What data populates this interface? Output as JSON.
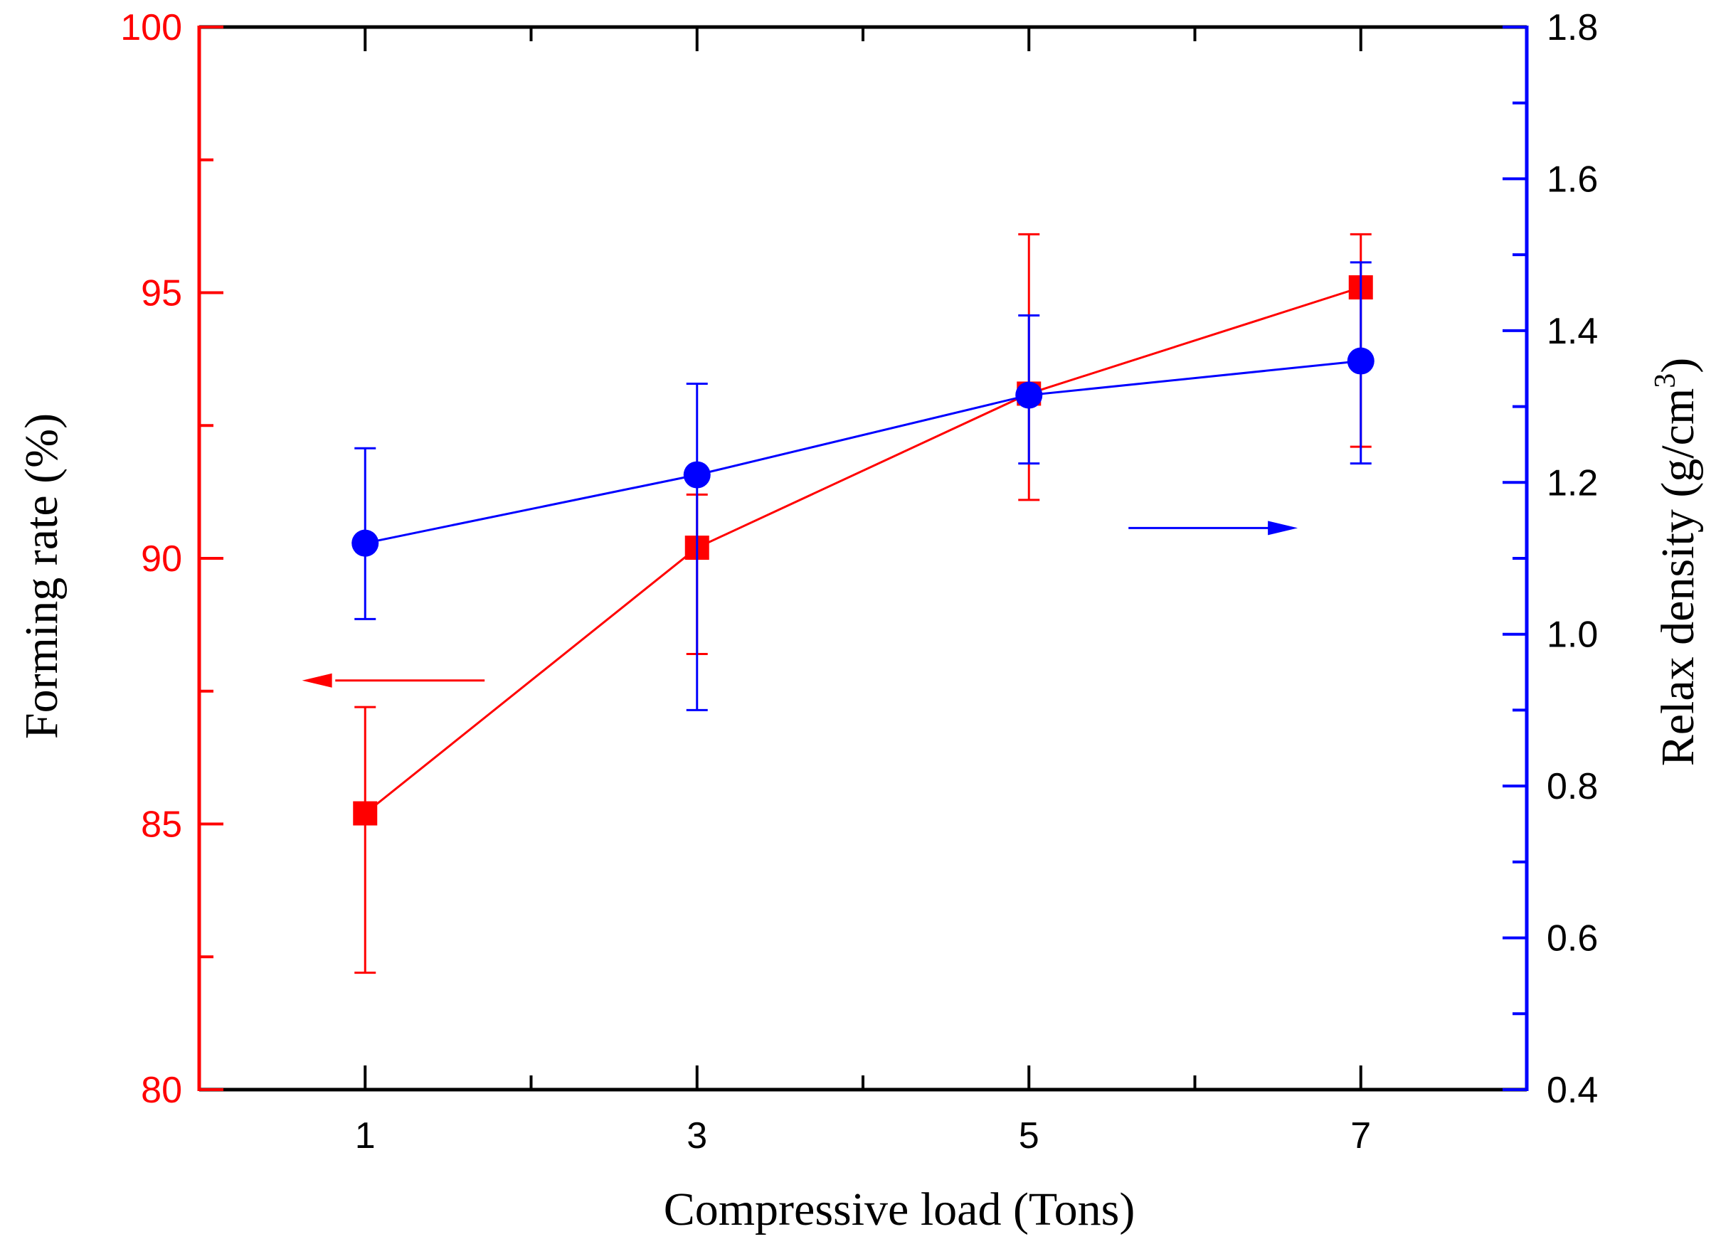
{
  "chart_data": {
    "type": "line",
    "title": "",
    "xlabel": "Compressive load (Tons)",
    "ylabel_left": "Forming rate (%)",
    "ylabel_right_base": "Relax density (g/cm",
    "ylabel_right_sup": "3",
    "ylabel_right_close": ")",
    "x": [
      1,
      3,
      5,
      7
    ],
    "x_ticks": [
      "1",
      "3",
      "5",
      "7"
    ],
    "xlim": [
      0,
      8
    ],
    "ylim_left": [
      80,
      100
    ],
    "ylim_right": [
      0.4,
      1.8
    ],
    "y_ticks_left": [
      "80",
      "85",
      "90",
      "95",
      "100"
    ],
    "y_ticks_right": [
      "0.4",
      "0.6",
      "0.8",
      "1.0",
      "1.2",
      "1.4",
      "1.6",
      "1.8"
    ],
    "grid": false,
    "series": [
      {
        "name": "Forming rate",
        "axis": "left",
        "marker": "square",
        "color": "#ff0000",
        "values": [
          85.2,
          90.2,
          93.1,
          95.1
        ],
        "err_low": [
          82.2,
          88.2,
          91.1,
          92.1
        ],
        "err_high": [
          87.2,
          91.2,
          96.1,
          96.1
        ]
      },
      {
        "name": "Relax density",
        "axis": "right",
        "marker": "circle",
        "color": "#0000ff",
        "values": [
          1.12,
          1.21,
          1.315,
          1.36
        ],
        "err_low": [
          1.02,
          0.9,
          1.225,
          1.225
        ],
        "err_high": [
          1.245,
          1.33,
          1.42,
          1.49
        ]
      }
    ],
    "annotations": [
      {
        "type": "arrow",
        "direction": "left",
        "points_to": "left axis",
        "color": "#ff0000"
      },
      {
        "type": "arrow",
        "direction": "right",
        "points_to": "right axis",
        "color": "#0000ff"
      }
    ],
    "colors": {
      "left_axis": "#ff0000",
      "right_axis": "#0000ff",
      "frame": "#000000"
    }
  }
}
